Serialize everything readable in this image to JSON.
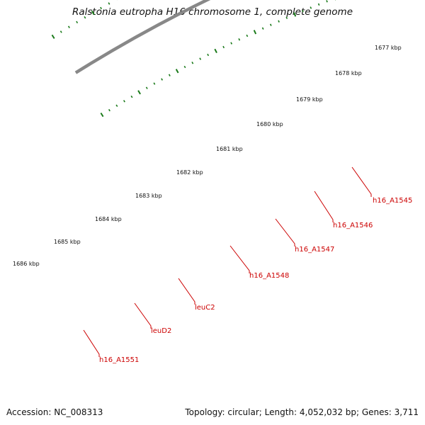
{
  "title": "Ralstonia eutropha H16 chromosome 1, complete genome",
  "footer": {
    "accession": "Accession: NC_008313",
    "summary": "Topology: circular; Length: 4,052,032 bp; Genes: 3,711"
  },
  "colors": {
    "forward_gene": "#ff0000",
    "reverse_gene": "#4a7fc0",
    "highlight_gene": "#00e0e0",
    "other_gene": "#6a9a20",
    "tick": "#1a7a1a",
    "backbone": "#808080",
    "label": "#cc0000"
  },
  "scale_labels": [
    "1677 kbp",
    "1678 kbp",
    "1679 kbp",
    "1680 kbp",
    "1681 kbp",
    "1682 kbp",
    "1683 kbp",
    "1684 kbp",
    "1685 kbp",
    "1686 kbp"
  ],
  "gene_labels": [
    "h16_A1545",
    "h16_A1546",
    "h16_A1547",
    "h16_A1548",
    "leuC2",
    "leuD2",
    "h16_A1551"
  ]
}
